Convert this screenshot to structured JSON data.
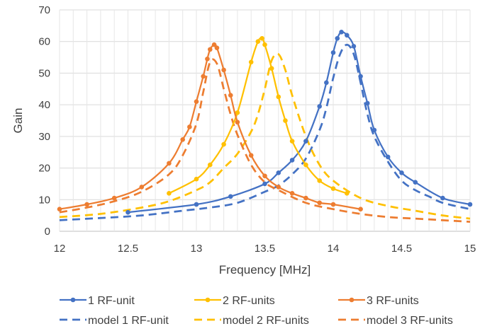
{
  "chart_data": {
    "type": "line",
    "xlabel": "Frequency [MHz]",
    "ylabel": "Gain",
    "xlim": [
      12,
      15
    ],
    "ylim": [
      0,
      70
    ],
    "xticks": [
      "12",
      "12.5",
      "13",
      "13.5",
      "14",
      "14.5",
      "15"
    ],
    "yticks": [
      "0",
      "10",
      "20",
      "30",
      "40",
      "50",
      "60",
      "70"
    ],
    "grid": true,
    "legend_position": "bottom",
    "series": [
      {
        "name": "1 RF-unit",
        "style": "solid-markers",
        "color": "#4472C4",
        "x": [
          12.5,
          13.0,
          13.25,
          13.5,
          13.6,
          13.7,
          13.8,
          13.9,
          13.95,
          14.0,
          14.03,
          14.06,
          14.1,
          14.15,
          14.2,
          14.25,
          14.3,
          14.4,
          14.5,
          14.6,
          14.8,
          15.0
        ],
        "y": [
          6,
          8.5,
          11,
          15,
          18.5,
          22.5,
          28.5,
          39.5,
          47,
          56.5,
          61,
          63,
          62,
          58.5,
          49,
          40.5,
          32,
          23.5,
          18.5,
          15.5,
          10.5,
          8.5
        ]
      },
      {
        "name": "2 RF-units",
        "style": "solid-markers",
        "color": "#FFC000",
        "x": [
          12.8,
          13.0,
          13.1,
          13.2,
          13.3,
          13.4,
          13.45,
          13.48,
          13.5,
          13.55,
          13.6,
          13.65,
          13.7,
          13.8,
          13.9,
          14.0,
          14.1
        ],
        "y": [
          12,
          16.5,
          21,
          27.5,
          37.5,
          53.5,
          60,
          61,
          59,
          51.5,
          42.5,
          35,
          28.5,
          21,
          16,
          13.5,
          12
        ]
      },
      {
        "name": "3 RF-units",
        "style": "solid-markers",
        "color": "#ED7D31",
        "x": [
          12.0,
          12.2,
          12.4,
          12.6,
          12.8,
          12.9,
          12.95,
          13.0,
          13.05,
          13.08,
          13.1,
          13.13,
          13.15,
          13.2,
          13.25,
          13.3,
          13.4,
          13.5,
          13.6,
          13.7,
          13.8,
          13.9,
          14.0,
          14.2
        ],
        "y": [
          7,
          8.5,
          10.5,
          14,
          21.5,
          29,
          33,
          41,
          49,
          54.5,
          57.5,
          59,
          58,
          51,
          43,
          34.5,
          24,
          17.5,
          14,
          12,
          10.5,
          9,
          8.5,
          7
        ]
      },
      {
        "name": "model 1 RF-unit",
        "style": "dashed",
        "color": "#4472C4",
        "x": [
          12.0,
          12.3,
          12.6,
          12.9,
          13.1,
          13.3,
          13.5,
          13.6,
          13.7,
          13.8,
          13.9,
          13.95,
          14.0,
          14.05,
          14.1,
          14.15,
          14.2,
          14.25,
          14.3,
          14.4,
          14.5,
          14.6,
          14.7,
          14.8,
          15.0
        ],
        "y": [
          3.5,
          4.2,
          5.0,
          6.5,
          7.5,
          9.0,
          12.5,
          14.5,
          18,
          23,
          32,
          39,
          48.5,
          56,
          59,
          56,
          47,
          37,
          30,
          22,
          16,
          13,
          11,
          9,
          7
        ]
      },
      {
        "name": "model 2 RF-units",
        "style": "dashed",
        "color": "#FFC000",
        "x": [
          12.0,
          12.3,
          12.6,
          12.8,
          13.0,
          13.1,
          13.2,
          13.3,
          13.4,
          13.45,
          13.5,
          13.55,
          13.6,
          13.65,
          13.7,
          13.8,
          13.9,
          14.0,
          14.2,
          14.4,
          14.6,
          14.8,
          15.0
        ],
        "y": [
          4.5,
          5.5,
          7.5,
          9.5,
          13,
          15.5,
          20,
          24.5,
          31.5,
          37,
          45,
          54,
          56,
          51,
          43,
          30,
          21,
          16,
          10.5,
          8,
          6.5,
          5,
          4
        ]
      },
      {
        "name": "model 3 RF-units",
        "style": "dashed",
        "color": "#ED7D31",
        "x": [
          12.0,
          12.2,
          12.4,
          12.6,
          12.8,
          12.9,
          13.0,
          13.05,
          13.1,
          13.15,
          13.2,
          13.25,
          13.3,
          13.4,
          13.5,
          13.6,
          13.8,
          14.0,
          14.2,
          14.4,
          14.6,
          14.8,
          15.0
        ],
        "y": [
          6,
          7.5,
          9.5,
          12.5,
          18,
          24,
          34,
          44,
          53.5,
          53,
          45,
          37,
          30.5,
          21,
          15.5,
          13,
          9,
          7,
          5.5,
          4.5,
          4,
          3.5,
          3
        ]
      }
    ]
  }
}
